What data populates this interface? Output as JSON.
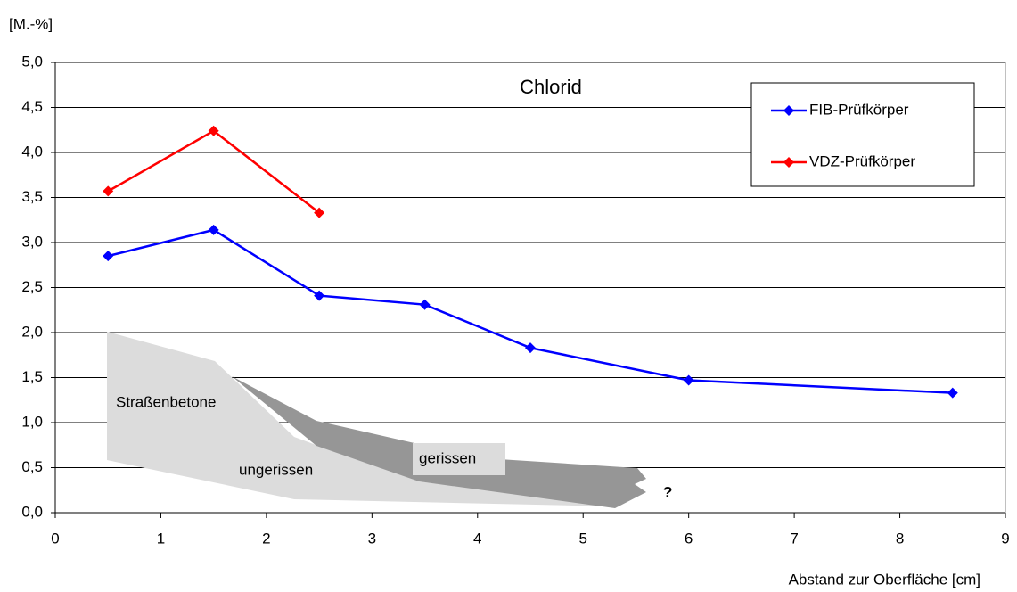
{
  "chart_data": {
    "type": "line",
    "title": "Chlorid",
    "y_label": "[M.-%]",
    "x_label": "Abstand zur Oberfläche [cm]",
    "series": [
      {
        "name": "FIB-Prüfkörper",
        "color": "#0000ff",
        "x": [
          0.5,
          1.5,
          2.5,
          3.5,
          4.5,
          6,
          8.5
        ],
        "values": [
          2.85,
          3.14,
          2.41,
          2.31,
          1.83,
          1.47,
          1.33
        ]
      },
      {
        "name": "VDZ-Prüfkörper",
        "color": "#ff0000",
        "x": [
          0.5,
          1.5,
          2.5
        ],
        "values": [
          3.57,
          4.24,
          3.33
        ]
      }
    ],
    "xlim": [
      0,
      9
    ],
    "xticks": [
      0,
      1,
      2,
      3,
      4,
      5,
      6,
      7,
      8,
      9
    ],
    "ylim": [
      0,
      5
    ],
    "yticks": [
      {
        "value": 0,
        "label": "0,0"
      },
      {
        "value": 0.5,
        "label": "0,5"
      },
      {
        "value": 1,
        "label": "1,0"
      },
      {
        "value": 1.5,
        "label": "1,5"
      },
      {
        "value": 2,
        "label": "2,0"
      },
      {
        "value": 2.5,
        "label": "2,5"
      },
      {
        "value": 3,
        "label": "3,0"
      },
      {
        "value": 3.5,
        "label": "3,5"
      },
      {
        "value": 4,
        "label": "4,0"
      },
      {
        "value": 4.5,
        "label": "4,5"
      },
      {
        "value": 5,
        "label": "5,0"
      }
    ],
    "grid": true,
    "legend": "upper right",
    "annotations": [
      "Straßenbetone",
      "ungerissen",
      "gerissen",
      "?"
    ]
  }
}
